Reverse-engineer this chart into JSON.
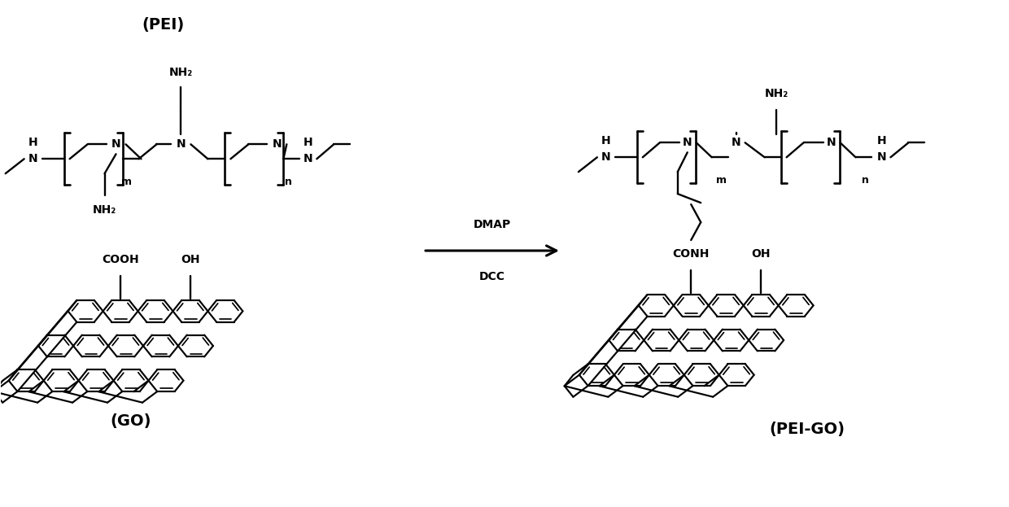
{
  "bg_color": "#ffffff",
  "line_color": "#000000",
  "text_color": "#000000",
  "fig_width": 12.4,
  "fig_height": 6.23,
  "dpi": 100,
  "pei_label": "(PEI)",
  "go_label": "(GO)",
  "peigo_label": "(PEI-GO)",
  "dmap_label": "DMAP",
  "dcc_label": "DCC"
}
